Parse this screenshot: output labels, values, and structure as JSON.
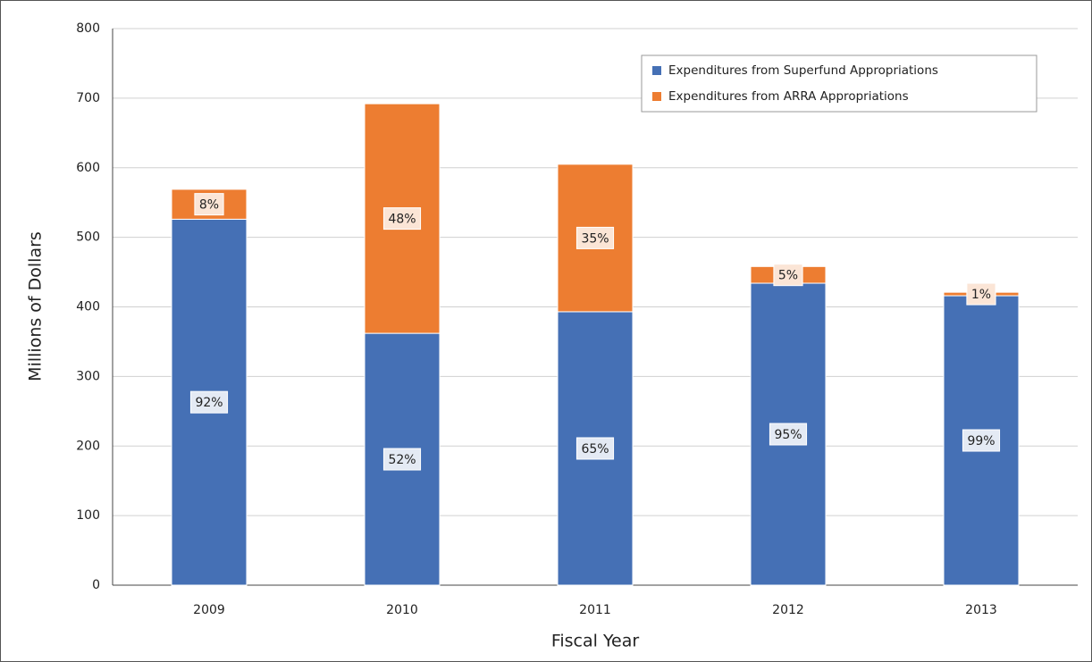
{
  "chart_data": {
    "type": "stacked-bar",
    "x_label": "Fiscal Year",
    "y_label": "Millions of Dollars",
    "categories": [
      "2009",
      "2010",
      "2011",
      "2012",
      "2013"
    ],
    "series": [
      {
        "name": "Expenditures from Superfund Appropriations",
        "color": "#4570b5",
        "values": [
          526,
          362,
          393,
          434,
          416
        ],
        "labels": [
          "92%",
          "52%",
          "65%",
          "95%",
          "99%"
        ],
        "label_fill": "#e4eaf4"
      },
      {
        "name": "Expenditures from ARRA Appropriations",
        "color": "#ed7d31",
        "values": [
          43,
          330,
          212,
          24,
          5
        ],
        "labels": [
          "8%",
          "48%",
          "35%",
          "5%",
          "1%"
        ],
        "label_fill": "#fbe5d6"
      }
    ],
    "ylim": [
      0,
      800
    ],
    "yticks": [
      0,
      100,
      200,
      300,
      400,
      500,
      600,
      700,
      800
    ],
    "grid": true,
    "legend": "top-right"
  }
}
